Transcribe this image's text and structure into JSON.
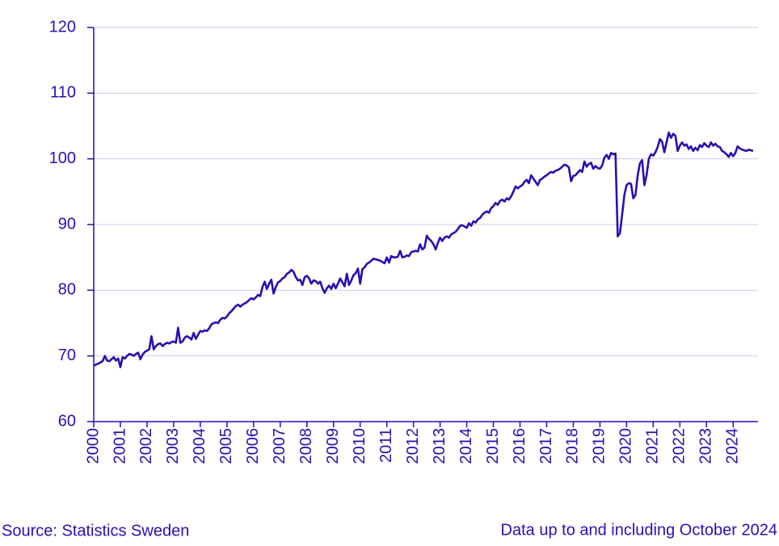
{
  "chart_data": {
    "type": "line",
    "source": "Source: Statistics Sweden",
    "note": "Data up to and including October 2024",
    "color": "#2a0fb0",
    "grid": true,
    "ylim": [
      60,
      120
    ],
    "yticks": [
      60,
      70,
      80,
      90,
      100,
      110,
      120
    ],
    "categories": [
      "2000",
      null,
      null,
      null,
      null,
      null,
      null,
      null,
      null,
      null,
      null,
      null,
      "2001",
      null,
      null,
      null,
      null,
      null,
      null,
      null,
      null,
      null,
      null,
      null,
      "2002",
      null,
      null,
      null,
      null,
      null,
      null,
      null,
      null,
      null,
      null,
      null,
      "2003",
      null,
      null,
      null,
      null,
      null,
      null,
      null,
      null,
      null,
      null,
      null,
      "2004",
      null,
      null,
      null,
      null,
      null,
      null,
      null,
      null,
      null,
      null,
      null,
      "2005",
      null,
      null,
      null,
      null,
      null,
      null,
      null,
      null,
      null,
      null,
      null,
      "2006",
      null,
      null,
      null,
      null,
      null,
      null,
      null,
      null,
      null,
      null,
      null,
      "2007",
      null,
      null,
      null,
      null,
      null,
      null,
      null,
      null,
      null,
      null,
      null,
      "2008",
      null,
      null,
      null,
      null,
      null,
      null,
      null,
      null,
      null,
      null,
      null,
      "2009",
      null,
      null,
      null,
      null,
      null,
      null,
      null,
      null,
      null,
      null,
      null,
      "2010",
      null,
      null,
      null,
      null,
      null,
      null,
      null,
      null,
      null,
      null,
      null,
      "2011",
      null,
      null,
      null,
      null,
      null,
      null,
      null,
      null,
      null,
      null,
      null,
      "2012",
      null,
      null,
      null,
      null,
      null,
      null,
      null,
      null,
      null,
      null,
      null,
      "2013",
      null,
      null,
      null,
      null,
      null,
      null,
      null,
      null,
      null,
      null,
      null,
      "2014",
      null,
      null,
      null,
      null,
      null,
      null,
      null,
      null,
      null,
      null,
      null,
      "2015",
      null,
      null,
      null,
      null,
      null,
      null,
      null,
      null,
      null,
      null,
      null,
      "2016",
      null,
      null,
      null,
      null,
      null,
      null,
      null,
      null,
      null,
      null,
      null,
      "2017",
      null,
      null,
      null,
      null,
      null,
      null,
      null,
      null,
      null,
      null,
      null,
      "2018",
      null,
      null,
      null,
      null,
      null,
      null,
      null,
      null,
      null,
      null,
      null,
      "2019",
      null,
      null,
      null,
      null,
      null,
      null,
      null,
      null,
      null,
      null,
      null,
      "2020",
      null,
      null,
      null,
      null,
      null,
      null,
      null,
      null,
      null,
      null,
      null,
      "2021",
      null,
      null,
      null,
      null,
      null,
      null,
      null,
      null,
      null,
      null,
      null,
      "2022",
      null,
      null,
      null,
      null,
      null,
      null,
      null,
      null,
      null,
      null,
      null,
      "2023",
      null,
      null,
      null,
      null,
      null,
      null,
      null,
      null,
      null,
      null,
      null,
      "2024",
      null,
      null,
      null,
      null,
      null,
      null,
      null,
      null,
      null
    ],
    "values": [
      68.5,
      68.7,
      68.8,
      69.0,
      69.2,
      70.0,
      69.3,
      69.2,
      69.5,
      69.8,
      69.3,
      69.6,
      68.3,
      69.8,
      69.6,
      70.0,
      70.3,
      70.2,
      70.0,
      70.3,
      70.5,
      69.5,
      70.2,
      70.6,
      70.8,
      71.0,
      73.0,
      71.0,
      71.5,
      71.8,
      71.9,
      71.5,
      71.8,
      72.0,
      71.9,
      72.1,
      72.2,
      72.0,
      74.3,
      72.0,
      72.2,
      72.8,
      73.0,
      72.8,
      72.5,
      73.5,
      72.6,
      73.2,
      73.8,
      73.7,
      73.9,
      73.8,
      74.2,
      74.8,
      75.0,
      75.1,
      75.0,
      75.5,
      75.8,
      75.7,
      76.0,
      76.5,
      76.8,
      77.2,
      77.6,
      77.8,
      77.5,
      77.8,
      78.0,
      78.2,
      78.5,
      78.8,
      78.6,
      78.9,
      79.3,
      79.1,
      80.5,
      81.3,
      80.2,
      81.0,
      81.6,
      79.5,
      80.5,
      81.2,
      81.4,
      81.8,
      82.0,
      82.5,
      82.7,
      83.1,
      82.8,
      82.0,
      81.5,
      81.6,
      80.8,
      82.0,
      82.2,
      81.8,
      81.0,
      81.5,
      81.4,
      81.0,
      81.3,
      80.3,
      79.6,
      80.3,
      80.7,
      80.2,
      81.0,
      80.3,
      81.0,
      81.8,
      81.2,
      80.6,
      82.5,
      80.8,
      81.5,
      82.3,
      82.6,
      83.3,
      81.0,
      83.2,
      83.5,
      84.0,
      84.2,
      84.5,
      84.8,
      84.7,
      84.6,
      84.5,
      84.3,
      84.1,
      85.0,
      84.2,
      85.2,
      85.0,
      85.0,
      85.1,
      86.0,
      85.0,
      85.1,
      85.3,
      85.2,
      85.8,
      85.9,
      86.0,
      85.9,
      87.0,
      86.2,
      86.5,
      88.3,
      87.8,
      87.5,
      87.0,
      86.2,
      87.2,
      88.0,
      87.5,
      88.0,
      88.2,
      88.0,
      88.5,
      88.7,
      88.9,
      89.3,
      89.8,
      89.9,
      89.7,
      89.5,
      90.2,
      89.8,
      90.5,
      90.3,
      90.8,
      91.0,
      91.5,
      91.8,
      92.0,
      91.8,
      92.5,
      92.8,
      93.3,
      93.0,
      93.6,
      93.8,
      93.5,
      94.0,
      93.8,
      94.3,
      95.0,
      95.8,
      95.5,
      95.8,
      96.0,
      96.5,
      96.8,
      96.3,
      97.5,
      97.0,
      96.5,
      96.0,
      96.8,
      97.0,
      97.3,
      97.5,
      97.8,
      98.0,
      97.9,
      98.2,
      98.3,
      98.5,
      98.8,
      99.1,
      99.0,
      98.7,
      96.6,
      97.4,
      97.5,
      97.9,
      98.3,
      98.0,
      99.6,
      98.8,
      99.2,
      99.4,
      98.5,
      98.9,
      98.6,
      98.5,
      99.0,
      100.2,
      100.6,
      100.0,
      100.9,
      100.7,
      100.8,
      88.2,
      88.7,
      91.5,
      94.5,
      96.0,
      96.3,
      96.2,
      94.0,
      94.5,
      97.5,
      99.3,
      99.8,
      96.0,
      97.5,
      100.0,
      100.7,
      100.5,
      101.0,
      101.8,
      103.0,
      102.6,
      101.0,
      102.5,
      104.0,
      103.2,
      103.8,
      103.5,
      101.2,
      102.0,
      102.5,
      102.0,
      102.2,
      101.5,
      101.9,
      101.2,
      101.7,
      101.3,
      102.1,
      101.8,
      102.4,
      102.0,
      101.8,
      102.5,
      102.0,
      102.3,
      101.9,
      101.8,
      101.2,
      101.0,
      100.7,
      100.3,
      100.9,
      100.4,
      100.9,
      101.9,
      101.6,
      101.4,
      101.3,
      101.2,
      101.4,
      101.3,
      101.2
    ]
  }
}
